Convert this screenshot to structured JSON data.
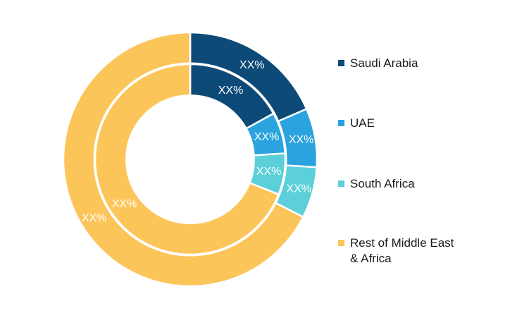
{
  "chart_data": {
    "type": "pie",
    "variant": "double-donut",
    "categories": [
      "Saudi Arabia",
      "UAE",
      "South Africa",
      "Rest of Middle East & Africa"
    ],
    "colors": [
      "#0d4a78",
      "#2aa3de",
      "#5ccfd9",
      "#fcc55a"
    ],
    "series": [
      {
        "ring": "outer",
        "values": [
          18.5,
          7.5,
          6.5,
          67.5
        ],
        "labels": [
          "XX%",
          "XX%",
          "XX%",
          "XX%"
        ]
      },
      {
        "ring": "inner",
        "values": [
          17,
          7,
          7,
          69
        ],
        "labels": [
          "XX%",
          "XX%",
          "XX%",
          "XX%"
        ]
      }
    ],
    "legend": {
      "position": "right",
      "items": [
        {
          "label": "Saudi Arabia",
          "color": "#0d4a78"
        },
        {
          "label": "UAE",
          "color": "#2aa3de"
        },
        {
          "label": "South Africa",
          "color": "#5ccfd9"
        },
        {
          "label": "Rest of Middle East & Africa",
          "color": "#fcc55a"
        }
      ]
    }
  }
}
